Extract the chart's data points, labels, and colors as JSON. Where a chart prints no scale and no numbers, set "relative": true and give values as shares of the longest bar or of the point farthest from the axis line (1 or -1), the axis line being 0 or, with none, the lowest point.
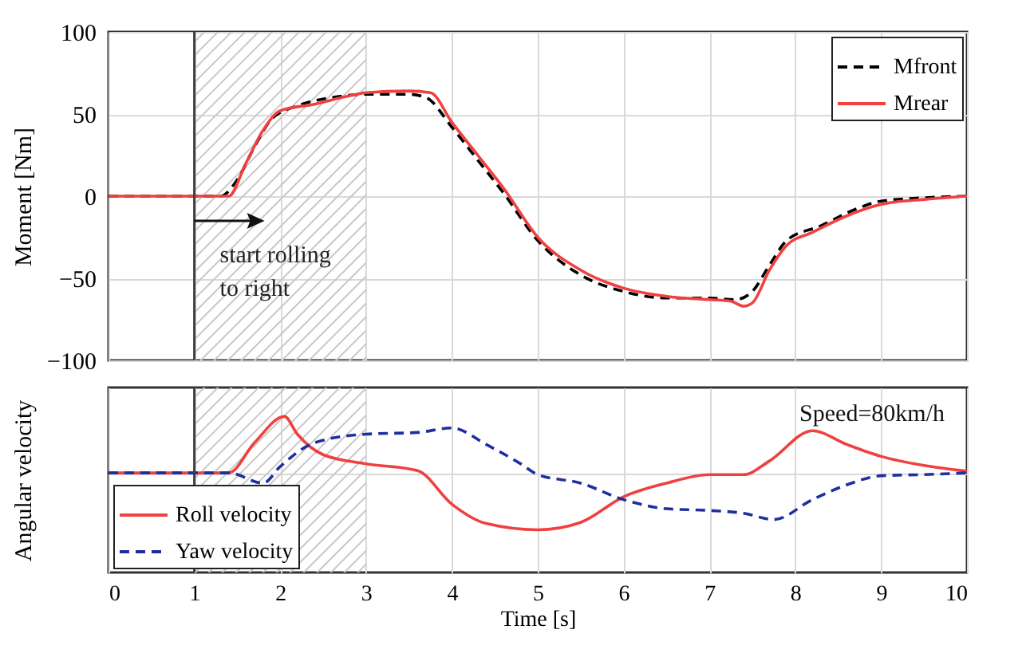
{
  "chart_data": [
    {
      "type": "line",
      "ylabel": "Moment [Nm]",
      "xlim": [
        0,
        10
      ],
      "xticks": [
        0,
        1,
        2,
        3,
        4,
        5,
        6,
        7,
        8,
        9,
        10
      ],
      "ylim": [
        -100,
        100
      ],
      "yticks": [
        -100,
        -50,
        0,
        50,
        100
      ],
      "tick_labels": "y",
      "grid": true,
      "legend": "top right",
      "series": [
        {
          "name": "Mfront",
          "color": "#000000",
          "line_style": "dashed",
          "x": [
            0,
            1.3,
            1.5,
            1.7,
            1.9,
            2.2,
            2.6,
            3,
            3.5,
            3.7,
            4,
            4.3,
            4.6,
            5,
            5.5,
            6,
            6.5,
            7,
            7.3,
            7.5,
            7.7,
            7.9,
            8.3,
            8.7,
            9,
            9.5,
            10
          ],
          "values": [
            0,
            0,
            10,
            30,
            47,
            55,
            60,
            62,
            62,
            60,
            42,
            22,
            2,
            -27,
            -48,
            -58,
            -62,
            -62,
            -63,
            -58,
            -42,
            -27,
            -18,
            -8,
            -3,
            -1,
            0
          ]
        },
        {
          "name": "Mrear",
          "color": "#f04040",
          "line_style": "solid",
          "x": [
            0,
            1.4,
            1.6,
            1.8,
            2,
            2.4,
            2.8,
            3,
            3.5,
            3.75,
            4,
            4.3,
            4.6,
            5,
            5.5,
            6,
            6.5,
            7,
            7.25,
            7.4,
            7.5,
            7.7,
            7.9,
            8.2,
            8.6,
            9,
            9.5,
            10
          ],
          "values": [
            0,
            0,
            20,
            40,
            52,
            56,
            61,
            63,
            64,
            63,
            45,
            25,
            5,
            -25,
            -45,
            -56,
            -61,
            -63,
            -64,
            -67,
            -65,
            -45,
            -30,
            -22,
            -12,
            -5,
            -2,
            0
          ]
        }
      ],
      "bands": [
        {
          "axis": "x",
          "from": 1,
          "to": 3,
          "color": "#c8c8c8"
        }
      ],
      "ref_lines": [
        {
          "axis": "x",
          "value": 1,
          "color": "#404040"
        }
      ],
      "annotations": [
        {
          "text": "start rolling to right",
          "x": 1,
          "y": -15
        }
      ]
    },
    {
      "type": "line",
      "xlabel": "Time [s]",
      "ylabel": "Angular velocity",
      "xlim": [
        0,
        10
      ],
      "xticks": [
        0,
        1,
        2,
        3,
        4,
        5,
        6,
        7,
        8,
        9,
        10
      ],
      "relative": true,
      "grid": true,
      "legend": "bottom left",
      "series": [
        {
          "name": "Roll velocity",
          "color": "#f04040",
          "line_style": "solid",
          "x": [
            0,
            1.4,
            1.7,
            2.05,
            2.2,
            2.5,
            3,
            3.6,
            4,
            4.4,
            5,
            5.5,
            6,
            6.5,
            7,
            7.4,
            7.7,
            8.2,
            8.6,
            9,
            9.5,
            10
          ],
          "values": [
            0,
            0,
            0.53,
            0.99,
            0.68,
            0.32,
            0.16,
            0.04,
            -0.55,
            -0.89,
            -1,
            -0.87,
            -0.42,
            -0.18,
            -0.03,
            -0.03,
            0.21,
            0.74,
            0.5,
            0.29,
            0.13,
            0.03
          ]
        },
        {
          "name": "Yaw velocity",
          "color": "#1f2f9f",
          "line_style": "dashed",
          "x": [
            0,
            1.4,
            1.8,
            2,
            2.4,
            3,
            3.6,
            4,
            4.4,
            4.8,
            5,
            5.5,
            6,
            6.5,
            7,
            7.4,
            7.75,
            8.2,
            8.6,
            9,
            9.5,
            10
          ],
          "values": [
            0,
            0,
            -0.18,
            0.11,
            0.53,
            0.68,
            0.71,
            0.79,
            0.5,
            0.16,
            -0.03,
            -0.18,
            -0.47,
            -0.63,
            -0.66,
            -0.71,
            -0.82,
            -0.47,
            -0.21,
            -0.05,
            -0.03,
            0
          ]
        }
      ],
      "bands": [
        {
          "axis": "x",
          "from": 1,
          "to": 3,
          "color": "#c8c8c8"
        }
      ],
      "ref_lines": [
        {
          "axis": "x",
          "value": 1,
          "color": "#404040"
        }
      ],
      "annotations": [
        "Speed=80km/h"
      ]
    }
  ]
}
